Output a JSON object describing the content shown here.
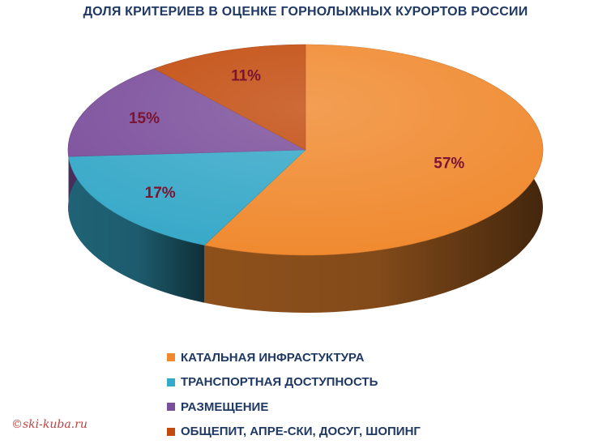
{
  "chart_data": {
    "type": "pie",
    "title": "ДОЛЯ КРИТЕРИЕВ В ОЦЕНКЕ ГОРНОЛЫЖНЫХ КУРОРТОВ РОССИИ",
    "categories": [
      "КАТАЛЬНАЯ ИНФРАСТУКТУРА",
      "ТРАНСПОРТНАЯ ДОСТУПНОСТЬ",
      "РАЗМЕЩЕНИЕ",
      "ОБЩЕПИТ, АПРЕ-СКИ, ДОСУГ, ШОПИНГ"
    ],
    "values": [
      57,
      17,
      15,
      11
    ],
    "value_labels": [
      "57%",
      "17%",
      "15%",
      "11%"
    ],
    "colors": [
      "#f0892e",
      "#36a8c8",
      "#7b4e9b",
      "#c24a0c"
    ],
    "style": "3d-pie",
    "legend_position": "bottom"
  },
  "watermark": "©ski-kuba.ru"
}
